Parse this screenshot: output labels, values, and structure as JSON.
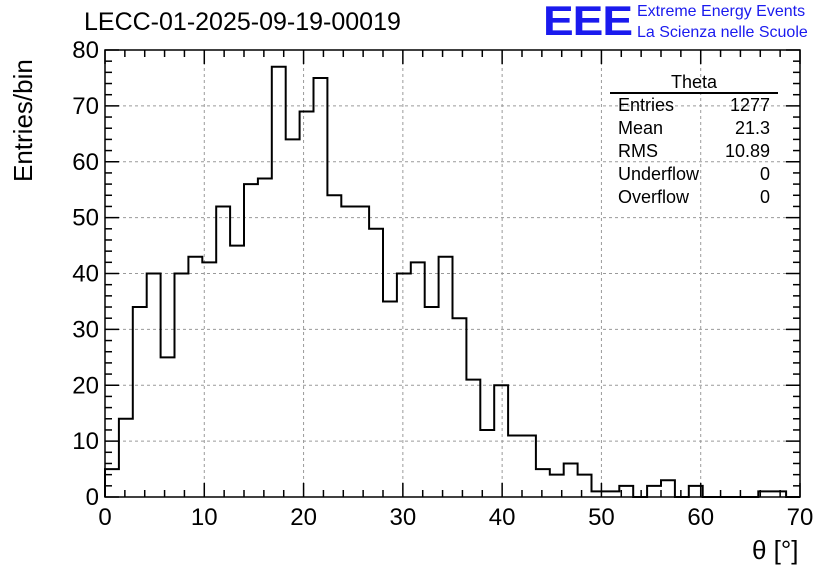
{
  "header": {
    "title": "LECC-01-2025-09-19-00019"
  },
  "logo": {
    "mark": "EEE",
    "line1": "Extreme Energy Events",
    "line2": "La Scienza nelle Scuole",
    "color": "#1a1aee"
  },
  "stats_box": {
    "title": "Theta",
    "rows": [
      {
        "label": "Entries",
        "value": "1277"
      },
      {
        "label": "Mean",
        "value": "21.3"
      },
      {
        "label": "RMS",
        "value": "10.89"
      },
      {
        "label": "Underflow",
        "value": "0"
      },
      {
        "label": "Overflow",
        "value": "0"
      }
    ]
  },
  "chart_data": {
    "type": "bar",
    "style": "step-histogram",
    "xlabel": "θ [°]",
    "ylabel": "Entries/bin",
    "xlim": [
      0,
      70
    ],
    "ylim": [
      0,
      80
    ],
    "bin_width": 1.4,
    "grid": true,
    "legend": "none",
    "xticks": [
      0,
      10,
      20,
      30,
      40,
      50,
      60,
      70
    ],
    "yticks": [
      0,
      10,
      20,
      30,
      40,
      50,
      60,
      70,
      80
    ],
    "values": [
      5,
      14,
      34,
      40,
      25,
      40,
      43,
      42,
      52,
      45,
      56,
      57,
      77,
      64,
      69,
      75,
      54,
      52,
      52,
      48,
      35,
      40,
      42,
      34,
      43,
      32,
      21,
      12,
      20,
      11,
      11,
      5,
      4,
      6,
      4,
      1,
      1,
      2,
      0,
      2,
      3,
      0,
      2,
      0,
      0,
      0,
      0,
      1,
      1,
      0
    ]
  }
}
